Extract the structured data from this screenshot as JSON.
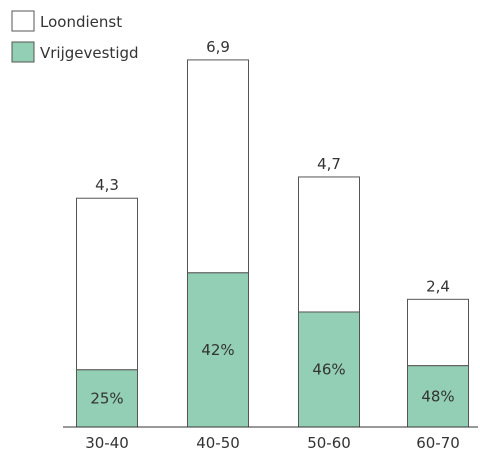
{
  "chart_data": {
    "type": "bar",
    "stacked": true,
    "categories": [
      "30-40",
      "40-50",
      "50-60",
      "60-70"
    ],
    "totals": [
      4.3,
      6.9,
      4.7,
      2.4
    ],
    "total_labels": [
      "4,3",
      "6,9",
      "4,7",
      "2,4"
    ],
    "series": [
      {
        "name": "Vrijgevestigd",
        "share": [
          0.25,
          0.42,
          0.46,
          0.48
        ],
        "labels": [
          "25%",
          "42%",
          "46%",
          "48%"
        ],
        "color": "#93cfb4"
      },
      {
        "name": "Loondienst",
        "color": "#ffffff"
      }
    ],
    "legend_position": "top-left",
    "grid": false,
    "ylim": [
      0,
      7.2
    ]
  }
}
